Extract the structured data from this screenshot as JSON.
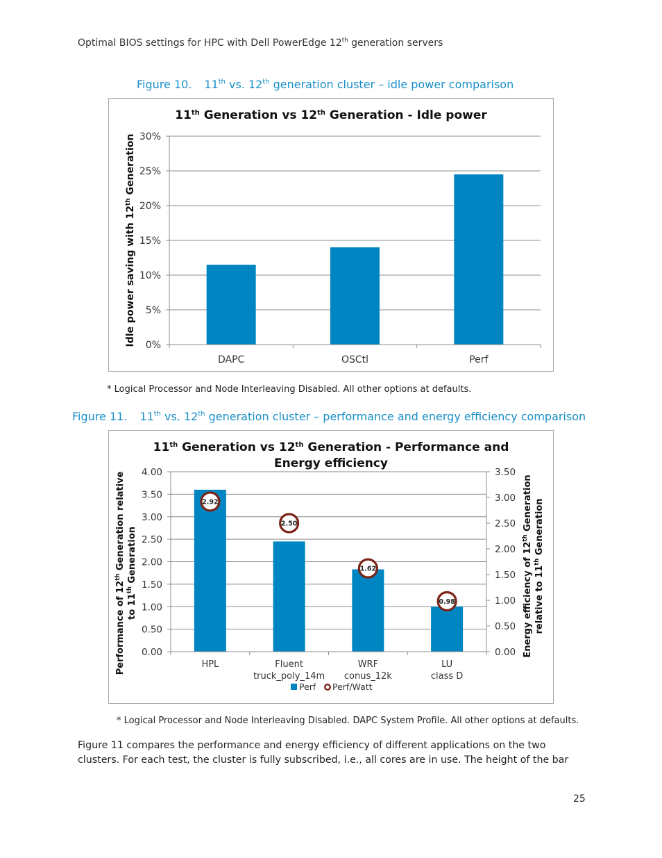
{
  "page": {
    "header": {
      "pre": "Optimal BIOS settings for HPC with Dell PowerEdge 12",
      "sup": "th",
      "post": " generation servers"
    },
    "figure10": {
      "number": "Figure 10.",
      "caption": {
        "a": "11",
        "a_sup": "th",
        "b": " vs. 12",
        "b_sup": "th",
        "c": " generation cluster – idle power comparison"
      },
      "footnote": "* Logical Processor and Node Interleaving Disabled. All other options at defaults."
    },
    "figure11": {
      "number": "Figure 11.",
      "caption": {
        "a": "11",
        "a_sup": "th",
        "b": " vs. 12",
        "b_sup": "th",
        "c": " generation cluster – performance and energy efficiency comparison"
      },
      "footnote": "* Logical Processor and Node Interleaving Disabled. DAPC System Profile. All other options at defaults."
    },
    "body_text": "Figure 11 compares the performance and energy efficiency of different applications on the two clusters. For each test, the cluster is fully subscribed, i.e., all cores are in use. The height of the bar",
    "page_number": "25"
  },
  "colors": {
    "bar": "#0085c3",
    "marker_ring": "#7b2418",
    "caption": "#1a8fc8",
    "grid": "#8c8c8c"
  },
  "chart_data": [
    {
      "type": "bar",
      "title": {
        "a": "11",
        "a_sup": "th",
        "b": " Generation vs 12",
        "b_sup": "th",
        "c": " Generation - Idle power"
      },
      "ylabel": {
        "a": "Idle power saving with 12",
        "a_sup": "th",
        "b": " Generation"
      },
      "categories": [
        "DAPC",
        "OSCtl",
        "Perf"
      ],
      "values": [
        11.5,
        14.0,
        24.5
      ],
      "ylim": [
        0,
        30
      ],
      "yticks": [
        "0%",
        "5%",
        "10%",
        "15%",
        "20%",
        "25%",
        "30%"
      ],
      "grid": true
    },
    {
      "type": "bar",
      "title": {
        "a": "11",
        "a_sup": "th",
        "b": " Generation vs 12",
        "b_sup": "th",
        "c": " Generation - Performance and",
        "d": "Energy efficiency"
      },
      "ylabel_left": {
        "line1": "Performance of 12",
        "line1_sup": "th",
        "line1_post": " Generation relative",
        "line2": "to 11",
        "line2_sup": "th",
        "line2_post": " Generation"
      },
      "ylabel_right": {
        "line1": "Energy efficiency of 12",
        "line1_sup": "th",
        "line1_post": " Generation",
        "line2": "relative to 11",
        "line2_sup": "th",
        "line2_post": " Generation"
      },
      "categories": [
        [
          "HPL",
          ""
        ],
        [
          "Fluent",
          "truck_poly_14m"
        ],
        [
          "WRF",
          "conus_12k"
        ],
        [
          "LU",
          "class D"
        ]
      ],
      "series": [
        {
          "name": "Perf",
          "axis": "left",
          "kind": "bar",
          "values": [
            3.6,
            2.45,
            1.83,
            1.0
          ]
        },
        {
          "name": "Perf/Watt",
          "axis": "right",
          "kind": "marker",
          "values": [
            2.92,
            2.5,
            1.62,
            0.98
          ],
          "labels": [
            "2.92",
            "2.50",
            "1.62",
            "0.98"
          ]
        }
      ],
      "ylim_left": [
        0,
        4
      ],
      "ylim_right": [
        0,
        3.5
      ],
      "yticks_left": [
        "0.00",
        "0.50",
        "1.00",
        "1.50",
        "2.00",
        "2.50",
        "3.00",
        "3.50",
        "4.00"
      ],
      "yticks_right": [
        "0.00",
        "0.50",
        "1.00",
        "1.50",
        "2.00",
        "2.50",
        "3.00",
        "3.50"
      ],
      "legend": "bottom",
      "grid": true
    }
  ]
}
